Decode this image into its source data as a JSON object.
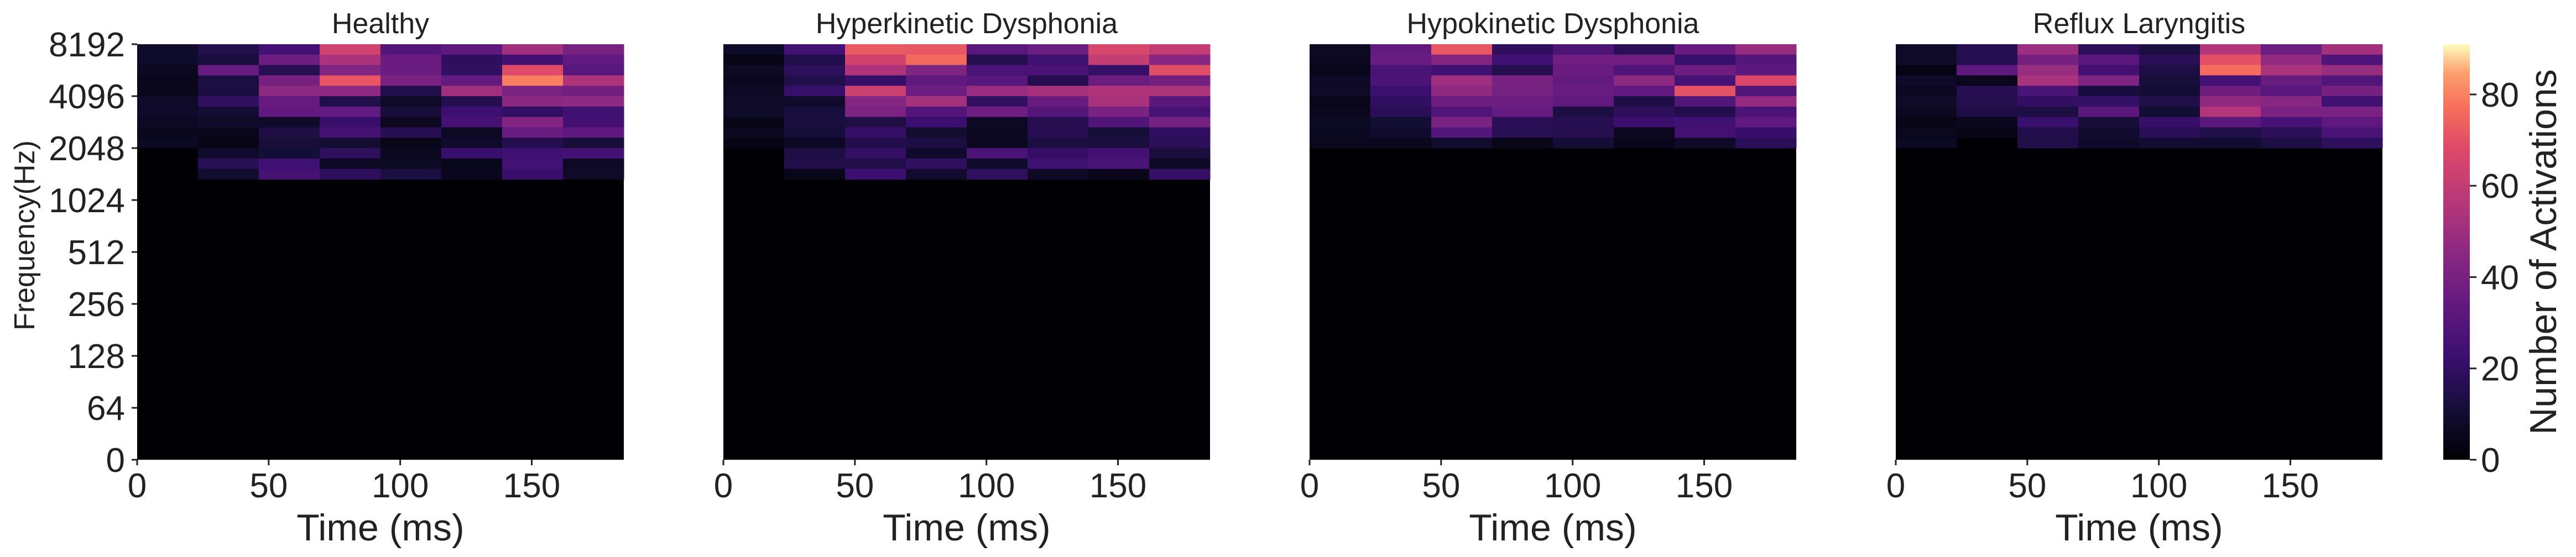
{
  "chart_data": {
    "type": "heatmap",
    "panels": [
      {
        "title": "Healthy",
        "xlabel": "Time (ms)",
        "ylabel": "Frequency(Hz)",
        "show_yaxis": true,
        "peak_col": [
          3,
          6,
          7
        ],
        "intensity": 0.95,
        "low_band": true
      },
      {
        "title": "Hyperkinetic Dysphonia",
        "xlabel": "Time (ms)",
        "ylabel": "",
        "show_yaxis": false,
        "peak_col": [
          2,
          3,
          6,
          7
        ],
        "intensity": 1.0,
        "low_band": true
      },
      {
        "title": "Hypokinetic Dysphonia",
        "xlabel": "Time (ms)",
        "ylabel": "",
        "show_yaxis": false,
        "peak_col": [
          2,
          6,
          7
        ],
        "intensity": 0.95,
        "low_band": false
      },
      {
        "title": "Reflux Laryngitis",
        "xlabel": "Time (ms)",
        "ylabel": "",
        "show_yaxis": false,
        "peak_col": [
          2,
          5,
          6,
          7
        ],
        "intensity": 0.9,
        "low_band": false
      }
    ],
    "x_ticks": [
      0,
      50,
      100,
      150
    ],
    "x_range": [
      0,
      185
    ],
    "y_tick_labels": [
      "0",
      "64",
      "128",
      "256",
      "512",
      "1024",
      "2048",
      "4096",
      "8192"
    ],
    "time_bins": 8,
    "freq_bins": 40,
    "colorbar": {
      "label": "Number of Activations",
      "ticks": [
        0,
        20,
        40,
        60,
        80
      ],
      "range": [
        0,
        91
      ],
      "colormap": "magma"
    },
    "grid": false
  }
}
